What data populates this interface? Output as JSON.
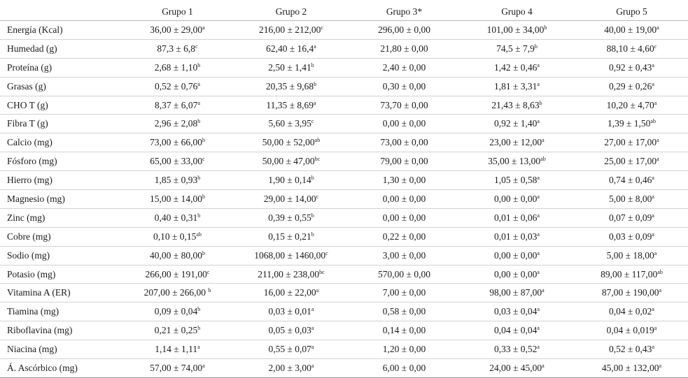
{
  "table": {
    "headers": [
      "",
      "Grupo 1",
      "Grupo 2",
      "Grupo 3*",
      "Grupo 4",
      "Grupo 5"
    ],
    "rows": [
      {
        "label": "Energía (Kcal)",
        "cells": [
          [
            "36,00 ± 29,00",
            "a"
          ],
          [
            "216,00 ± 212,00",
            "c"
          ],
          [
            "296,00 ± 0,00",
            ""
          ],
          [
            "101,00 ± 34,00",
            "b"
          ],
          [
            "40,00 ± 19,00",
            "a"
          ]
        ]
      },
      {
        "label": "Humedad (g)",
        "cells": [
          [
            "87,3 ± 6,8",
            "c"
          ],
          [
            "62,40 ± 16,4",
            "a"
          ],
          [
            "21,80 ± 0,00",
            ""
          ],
          [
            "74,5 ± 7,9",
            "b"
          ],
          [
            "88,10 ± 4,60",
            "c"
          ]
        ]
      },
      {
        "label": "Proteína (g)",
        "cells": [
          [
            "2,68 ± 1,10",
            "b"
          ],
          [
            "2,50 ± 1,41",
            "b"
          ],
          [
            "2,40 ± 0,00",
            ""
          ],
          [
            "1,42 ± 0,46",
            "a"
          ],
          [
            "0,92 ± 0,43",
            "a"
          ]
        ]
      },
      {
        "label": "Grasas (g)",
        "cells": [
          [
            "0,52 ± 0,76",
            "a"
          ],
          [
            "20,35 ± 9,68",
            "b"
          ],
          [
            "0,30 ± 0,00",
            ""
          ],
          [
            "1,81 ± 3,31",
            "a"
          ],
          [
            "0,29 ± 0,26",
            "a"
          ]
        ]
      },
      {
        "label": "CHO T (g)",
        "cells": [
          [
            "8,37 ± 6,07",
            "a"
          ],
          [
            "11,35 ± 8,69",
            "a"
          ],
          [
            "73,70 ± 0,00",
            ""
          ],
          [
            "21,43 ± 8,63",
            "b"
          ],
          [
            "10,20 ± 4,70",
            "a"
          ]
        ]
      },
      {
        "label": "Fibra T (g)",
        "cells": [
          [
            "2,96 ± 2,08",
            "b"
          ],
          [
            "5,60 ± 3,95",
            "c"
          ],
          [
            "0,00 ± 0,00",
            ""
          ],
          [
            "0,92 ± 1,40",
            "a"
          ],
          [
            "1,39 ± 1,50",
            "ab"
          ]
        ]
      },
      {
        "label": "Calcio (mg)",
        "cells": [
          [
            "73,00 ± 66,00",
            "b"
          ],
          [
            "50,00 ± 52,00",
            "ab"
          ],
          [
            "73,00 ± 0,00",
            ""
          ],
          [
            "23,00 ± 12,00",
            "a"
          ],
          [
            "27,00 ± 17,00",
            "a"
          ]
        ]
      },
      {
        "label": "Fósforo (mg)",
        "cells": [
          [
            "65,00 ± 33,00",
            "c"
          ],
          [
            "50,00 ± 47,00",
            "bc"
          ],
          [
            "79,00 ± 0,00",
            ""
          ],
          [
            "35,00 ± 13,00",
            "ab"
          ],
          [
            "25,00 ± 17,00",
            "a"
          ]
        ]
      },
      {
        "label": "Hierro (mg)",
        "cells": [
          [
            "1,85 ± 0,93",
            "b"
          ],
          [
            "1,90 ± 0,14",
            "b"
          ],
          [
            "1,30 ± 0,00",
            ""
          ],
          [
            "1,05 ± 0,58",
            "a"
          ],
          [
            "0,74 ± 0,46",
            "a"
          ]
        ]
      },
      {
        "label": "Magnesio (mg)",
        "cells": [
          [
            "15,00 ± 14,00",
            "b"
          ],
          [
            "29,00 ± 14,00",
            "c"
          ],
          [
            "0,00 ± 0,00",
            ""
          ],
          [
            "0,00 ± 0,00",
            "a"
          ],
          [
            "5,00 ± 8,00",
            "a"
          ]
        ]
      },
      {
        "label": "Zinc (mg)",
        "cells": [
          [
            "0,40 ± 0,31",
            "b"
          ],
          [
            "0,39 ± 0,55",
            "b"
          ],
          [
            "0,00 ± 0,00",
            ""
          ],
          [
            "0,01 ± 0,06",
            "a"
          ],
          [
            "0,07 ± 0,09",
            "a"
          ]
        ]
      },
      {
        "label": "Cobre (mg)",
        "cells": [
          [
            "0,10 ± 0,15",
            "ab"
          ],
          [
            "0,15 ± 0,21",
            "b"
          ],
          [
            "0,22 ± 0,00",
            ""
          ],
          [
            "0,01 ± 0,03",
            "a"
          ],
          [
            "0,03 ± 0,09",
            "a"
          ]
        ]
      },
      {
        "label": "Sodio (mg)",
        "cells": [
          [
            "40,00 ± 80,00",
            "b"
          ],
          [
            "1068,00 ± 1460,00",
            "c"
          ],
          [
            "3,00 ± 0,00",
            ""
          ],
          [
            "0,00 ± 0,00",
            "a"
          ],
          [
            "5,00 ± 18,00",
            "a"
          ]
        ]
      },
      {
        "label": "Potasio (mg)",
        "cells": [
          [
            "266,00 ± 191,00",
            "c"
          ],
          [
            "211,00 ± 238,00",
            "bc"
          ],
          [
            "570,00 ± 0,00",
            ""
          ],
          [
            "0,00 ± 0,00",
            "a"
          ],
          [
            "89,00 ± 117,00",
            "ab"
          ]
        ]
      },
      {
        "label": "Vitamina A (ER)",
        "cells": [
          [
            "207,00 ± 266,00 ",
            "b"
          ],
          [
            "16,00 ± 22,00",
            "a"
          ],
          [
            "7,00 ± 0,00",
            ""
          ],
          [
            "98,00 ± 87,00",
            "a"
          ],
          [
            "87,00 ± 190,00",
            "a"
          ]
        ]
      },
      {
        "label": "Tiamina (mg)",
        "cells": [
          [
            "0,09 ± 0,04",
            "b"
          ],
          [
            "0,03 ± 0,01",
            "a"
          ],
          [
            "0,58 ± 0,00",
            ""
          ],
          [
            "0,03 ± 0,04",
            "a"
          ],
          [
            "0,04 ± 0,02",
            "a"
          ]
        ]
      },
      {
        "label": "Riboflavina (mg)",
        "cells": [
          [
            "0,21 ± 0,25",
            "b"
          ],
          [
            "0,05 ± 0,03",
            "a"
          ],
          [
            "0,14 ± 0,00",
            ""
          ],
          [
            "0,04 ± 0,04",
            "a"
          ],
          [
            "0,04 ± 0,019",
            "a"
          ]
        ]
      },
      {
        "label": "Niacina (mg)",
        "cells": [
          [
            "1,14 ± 1,11",
            "a"
          ],
          [
            "0,55 ± 0,07",
            "a"
          ],
          [
            "1,20 ± 0,00",
            ""
          ],
          [
            "0,33 ± 0,52",
            "a"
          ],
          [
            "0,52 ± 0,43",
            "a"
          ]
        ]
      },
      {
        "label": "Á. Ascórbico (mg)",
        "cells": [
          [
            "57,00 ± 74,00",
            "a"
          ],
          [
            "2,00 ± 3,00",
            "a"
          ],
          [
            "6,00 ± 0,00",
            ""
          ],
          [
            "24,00 ± 45,00",
            "a"
          ],
          [
            "45,00 ± 132,00",
            "a"
          ]
        ]
      }
    ]
  }
}
